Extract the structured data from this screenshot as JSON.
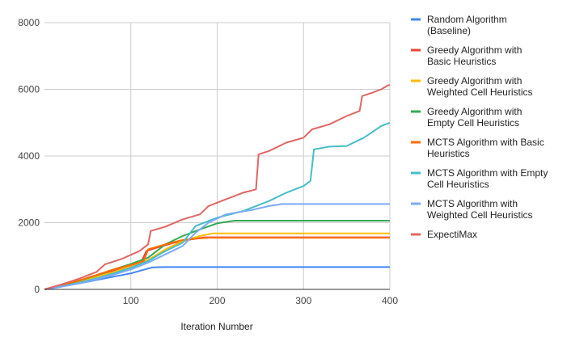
{
  "chart_data": {
    "type": "line",
    "title": "",
    "xlabel": "Iteration Number",
    "ylabel": "",
    "xlim": [
      0,
      400
    ],
    "ylim": [
      0,
      8000
    ],
    "x_ticks": [
      100,
      200,
      300,
      400
    ],
    "y_ticks": [
      0,
      2000,
      4000,
      6000,
      8000
    ],
    "grid": true,
    "legend_position": "right",
    "series": [
      {
        "name": "Random Algorithm (Baseline)",
        "legend_lines": [
          "Random Algorithm",
          "(Baseline)"
        ],
        "color": "#4285f4",
        "points": [
          [
            0,
            0
          ],
          [
            20,
            90
          ],
          [
            40,
            180
          ],
          [
            60,
            280
          ],
          [
            80,
            380
          ],
          [
            100,
            480
          ],
          [
            115,
            590
          ],
          [
            125,
            660
          ],
          [
            140,
            670
          ],
          [
            400,
            670
          ]
        ]
      },
      {
        "name": "Greedy Algorithm with Basic Heuristics",
        "legend_lines": [
          "Greedy Algorithm with",
          "Basic Heuristics"
        ],
        "color": "#ea4335",
        "points": [
          [
            0,
            0
          ],
          [
            20,
            120
          ],
          [
            40,
            250
          ],
          [
            60,
            400
          ],
          [
            80,
            550
          ],
          [
            100,
            700
          ],
          [
            112,
            820
          ],
          [
            118,
            1150
          ],
          [
            130,
            1250
          ],
          [
            150,
            1400
          ],
          [
            170,
            1500
          ],
          [
            185,
            1560
          ],
          [
            400,
            1560
          ]
        ]
      },
      {
        "name": "Greedy Algorithm with Weighted Cell Heuristics",
        "legend_lines": [
          "Greedy Algorithm with",
          "Weighted Cell Heuristics"
        ],
        "color": "#fbbc04",
        "points": [
          [
            0,
            0
          ],
          [
            20,
            110
          ],
          [
            40,
            240
          ],
          [
            60,
            380
          ],
          [
            80,
            520
          ],
          [
            100,
            700
          ],
          [
            120,
            880
          ],
          [
            140,
            1200
          ],
          [
            160,
            1450
          ],
          [
            180,
            1600
          ],
          [
            195,
            1680
          ],
          [
            400,
            1680
          ]
        ]
      },
      {
        "name": "Greedy Algorithm with Empty Cell Heuristics",
        "legend_lines": [
          "Greedy Algorithm with",
          "Empty Cell Heuristics"
        ],
        "color": "#34a853",
        "points": [
          [
            0,
            0
          ],
          [
            20,
            120
          ],
          [
            40,
            260
          ],
          [
            60,
            420
          ],
          [
            80,
            600
          ],
          [
            100,
            760
          ],
          [
            120,
            950
          ],
          [
            140,
            1350
          ],
          [
            160,
            1600
          ],
          [
            180,
            1800
          ],
          [
            200,
            1980
          ],
          [
            220,
            2060
          ],
          [
            400,
            2060
          ]
        ]
      },
      {
        "name": "MCTS Algorithm with Basic Heuristics",
        "legend_lines": [
          "MCTS Algorithm with Basic",
          "Heuristics"
        ],
        "color": "#ff6d01",
        "points": [
          [
            0,
            0
          ],
          [
            20,
            130
          ],
          [
            40,
            270
          ],
          [
            60,
            430
          ],
          [
            80,
            600
          ],
          [
            100,
            730
          ],
          [
            115,
            850
          ],
          [
            120,
            1200
          ],
          [
            140,
            1350
          ],
          [
            160,
            1480
          ],
          [
            180,
            1530
          ],
          [
            190,
            1550
          ],
          [
            400,
            1550
          ]
        ]
      },
      {
        "name": "MCTS Algorithm with Empty Cell Heuristics",
        "legend_lines": [
          "MCTS Algorithm with Empty",
          "Cell Heuristics"
        ],
        "color": "#46bdc6",
        "points": [
          [
            0,
            0
          ],
          [
            20,
            90
          ],
          [
            40,
            200
          ],
          [
            60,
            330
          ],
          [
            80,
            480
          ],
          [
            100,
            650
          ],
          [
            120,
            850
          ],
          [
            140,
            1150
          ],
          [
            160,
            1400
          ],
          [
            175,
            1900
          ],
          [
            200,
            2150
          ],
          [
            230,
            2350
          ],
          [
            260,
            2650
          ],
          [
            280,
            2900
          ],
          [
            300,
            3100
          ],
          [
            308,
            3250
          ],
          [
            312,
            4200
          ],
          [
            330,
            4280
          ],
          [
            350,
            4300
          ],
          [
            370,
            4550
          ],
          [
            390,
            4900
          ],
          [
            400,
            5000
          ]
        ]
      },
      {
        "name": "MCTS Algorithm with Weighted Cell Heuristics",
        "legend_lines": [
          "MCTS Algorithm with",
          "Weighted Cell Heuristics"
        ],
        "color": "#7baaf7",
        "points": [
          [
            0,
            0
          ],
          [
            20,
            80
          ],
          [
            40,
            180
          ],
          [
            60,
            300
          ],
          [
            80,
            440
          ],
          [
            100,
            600
          ],
          [
            120,
            800
          ],
          [
            140,
            1050
          ],
          [
            160,
            1300
          ],
          [
            175,
            1700
          ],
          [
            190,
            2000
          ],
          [
            210,
            2250
          ],
          [
            240,
            2380
          ],
          [
            260,
            2500
          ],
          [
            275,
            2560
          ],
          [
            400,
            2560
          ]
        ]
      },
      {
        "name": "ExpectiMax",
        "legend_lines": [
          "ExpectiMax"
        ],
        "color": "#e06666",
        "points": [
          [
            0,
            0
          ],
          [
            20,
            150
          ],
          [
            40,
            320
          ],
          [
            60,
            520
          ],
          [
            70,
            750
          ],
          [
            90,
            920
          ],
          [
            110,
            1150
          ],
          [
            120,
            1350
          ],
          [
            123,
            1750
          ],
          [
            140,
            1880
          ],
          [
            160,
            2100
          ],
          [
            180,
            2250
          ],
          [
            190,
            2500
          ],
          [
            210,
            2700
          ],
          [
            230,
            2900
          ],
          [
            245,
            3000
          ],
          [
            248,
            4050
          ],
          [
            260,
            4150
          ],
          [
            280,
            4400
          ],
          [
            300,
            4550
          ],
          [
            310,
            4800
          ],
          [
            330,
            4950
          ],
          [
            350,
            5200
          ],
          [
            365,
            5350
          ],
          [
            368,
            5800
          ],
          [
            380,
            5900
          ],
          [
            390,
            6000
          ],
          [
            398,
            6120
          ],
          [
            400,
            6130
          ]
        ]
      }
    ]
  }
}
